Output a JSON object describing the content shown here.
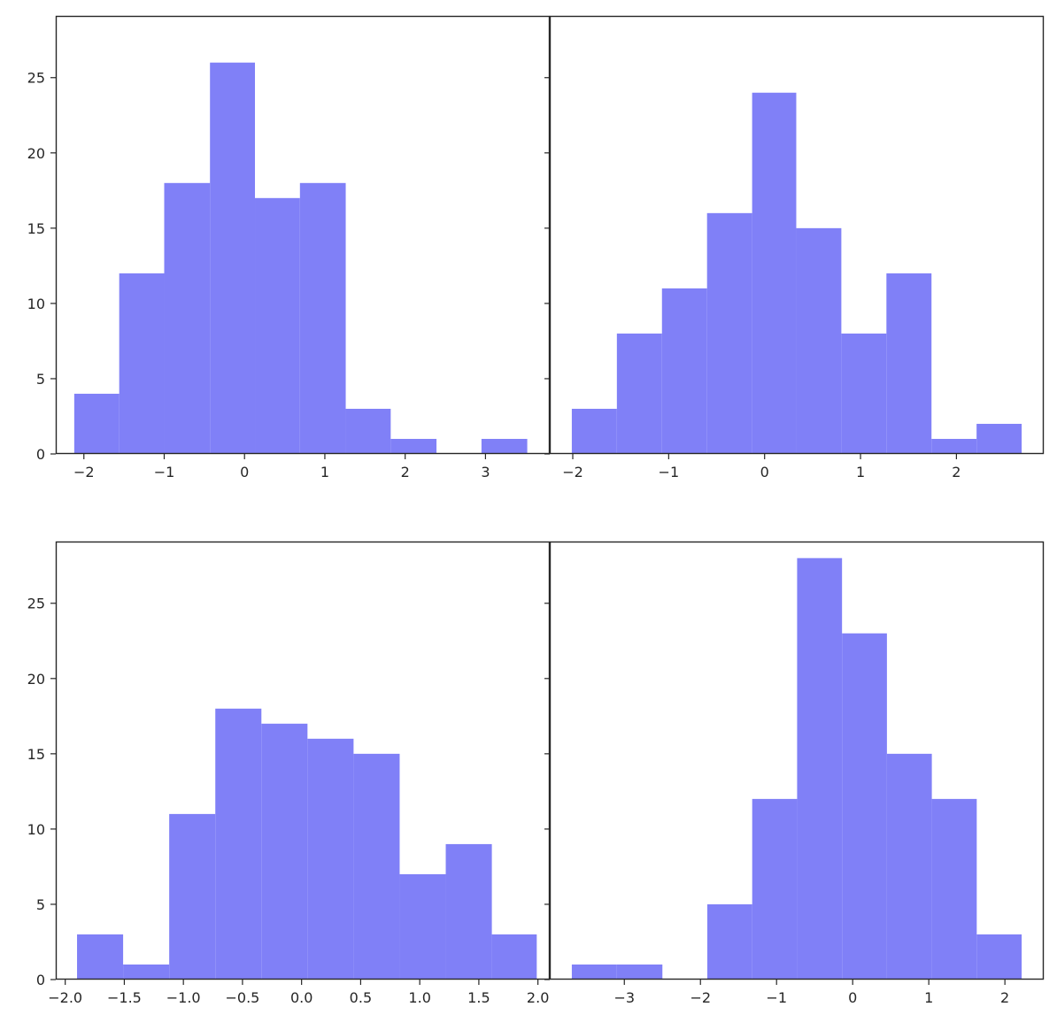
{
  "chart_data": [
    {
      "type": "bar",
      "panel": "top-left",
      "color": "#8080f7",
      "xlim": [
        -2.35,
        3.8
      ],
      "ylim": [
        0,
        29.1
      ],
      "xticks": [
        -2,
        -1,
        0,
        1,
        2,
        3
      ],
      "xtick_labels": [
        "−2",
        "−1",
        "0",
        "1",
        "2",
        "3"
      ],
      "yticks": [
        0,
        5,
        10,
        15,
        20,
        25
      ],
      "ytick_labels": [
        "0",
        "5",
        "10",
        "15",
        "20",
        "25"
      ],
      "show_yticklabels": true,
      "bins": [
        {
          "x0": -2.12,
          "x1": -1.56,
          "count": 4
        },
        {
          "x0": -1.56,
          "x1": -1.0,
          "count": 12
        },
        {
          "x0": -1.0,
          "x1": -0.43,
          "count": 18
        },
        {
          "x0": -0.43,
          "x1": 0.13,
          "count": 26
        },
        {
          "x0": 0.13,
          "x1": 0.69,
          "count": 17
        },
        {
          "x0": 0.69,
          "x1": 1.26,
          "count": 18
        },
        {
          "x0": 1.26,
          "x1": 1.82,
          "count": 3
        },
        {
          "x0": 1.82,
          "x1": 2.39,
          "count": 1
        },
        {
          "x0": 2.39,
          "x1": 2.95,
          "count": 0
        },
        {
          "x0": 2.95,
          "x1": 3.52,
          "count": 1
        }
      ]
    },
    {
      "type": "bar",
      "panel": "top-right",
      "color": "#8080f7",
      "xlim": [
        -2.24,
        2.91
      ],
      "ylim": [
        0,
        29.1
      ],
      "xticks": [
        -2,
        -1,
        0,
        1,
        2
      ],
      "xtick_labels": [
        "−2",
        "−1",
        "0",
        "1",
        "2"
      ],
      "yticks": [
        0,
        5,
        10,
        15,
        20,
        25
      ],
      "ytick_labels": [
        "0",
        "5",
        "10",
        "15",
        "20",
        "25"
      ],
      "show_yticklabels": false,
      "bins": [
        {
          "x0": -2.01,
          "x1": -1.54,
          "count": 3
        },
        {
          "x0": -1.54,
          "x1": -1.07,
          "count": 8
        },
        {
          "x0": -1.07,
          "x1": -0.6,
          "count": 11
        },
        {
          "x0": -0.6,
          "x1": -0.13,
          "count": 16
        },
        {
          "x0": -0.13,
          "x1": 0.33,
          "count": 24
        },
        {
          "x0": 0.33,
          "x1": 0.8,
          "count": 15
        },
        {
          "x0": 0.8,
          "x1": 1.27,
          "count": 8
        },
        {
          "x0": 1.27,
          "x1": 1.74,
          "count": 12
        },
        {
          "x0": 1.74,
          "x1": 2.21,
          "count": 1
        },
        {
          "x0": 2.21,
          "x1": 2.68,
          "count": 2
        }
      ]
    },
    {
      "type": "bar",
      "panel": "bottom-left",
      "color": "#8080f7",
      "xlim": [
        -2.08,
        2.1
      ],
      "ylim": [
        0,
        29.1
      ],
      "xticks": [
        -2.0,
        -1.5,
        -1.0,
        -0.5,
        0.0,
        0.5,
        1.0,
        1.5,
        2.0
      ],
      "xtick_labels": [
        "−2.0",
        "−1.5",
        "−1.0",
        "−0.5",
        "0.0",
        "0.5",
        "1.0",
        "1.5",
        "2.0"
      ],
      "yticks": [
        0,
        5,
        10,
        15,
        20,
        25
      ],
      "ytick_labels": [
        "0",
        "5",
        "10",
        "15",
        "20",
        "25"
      ],
      "show_yticklabels": true,
      "bins": [
        {
          "x0": -1.9,
          "x1": -1.51,
          "count": 3
        },
        {
          "x0": -1.51,
          "x1": -1.12,
          "count": 1
        },
        {
          "x0": -1.12,
          "x1": -0.73,
          "count": 11
        },
        {
          "x0": -0.73,
          "x1": -0.34,
          "count": 18
        },
        {
          "x0": -0.34,
          "x1": 0.05,
          "count": 17
        },
        {
          "x0": 0.05,
          "x1": 0.44,
          "count": 16
        },
        {
          "x0": 0.44,
          "x1": 0.83,
          "count": 15
        },
        {
          "x0": 0.83,
          "x1": 1.22,
          "count": 7
        },
        {
          "x0": 1.22,
          "x1": 1.61,
          "count": 9
        },
        {
          "x0": 1.61,
          "x1": 1.99,
          "count": 3
        }
      ]
    },
    {
      "type": "bar",
      "panel": "bottom-right",
      "color": "#8080f7",
      "xlim": [
        -3.98,
        2.51
      ],
      "ylim": [
        0,
        29.1
      ],
      "xticks": [
        -3,
        -2,
        -1,
        0,
        1,
        2
      ],
      "xtick_labels": [
        "−3",
        "−2",
        "−1",
        "0",
        "1",
        "2"
      ],
      "yticks": [
        0,
        5,
        10,
        15,
        20,
        25
      ],
      "ytick_labels": [
        "0",
        "5",
        "10",
        "15",
        "20",
        "25"
      ],
      "show_yticklabels": false,
      "bins": [
        {
          "x0": -3.69,
          "x1": -3.1,
          "count": 1
        },
        {
          "x0": -3.1,
          "x1": -2.5,
          "count": 1
        },
        {
          "x0": -2.5,
          "x1": -1.91,
          "count": 0
        },
        {
          "x0": -1.91,
          "x1": -1.32,
          "count": 5
        },
        {
          "x0": -1.32,
          "x1": -0.73,
          "count": 12
        },
        {
          "x0": -0.73,
          "x1": -0.14,
          "count": 28
        },
        {
          "x0": -0.14,
          "x1": 0.45,
          "count": 23
        },
        {
          "x0": 0.45,
          "x1": 1.04,
          "count": 15
        },
        {
          "x0": 1.04,
          "x1": 1.63,
          "count": 12
        },
        {
          "x0": 1.63,
          "x1": 2.22,
          "count": 3
        }
      ]
    }
  ]
}
